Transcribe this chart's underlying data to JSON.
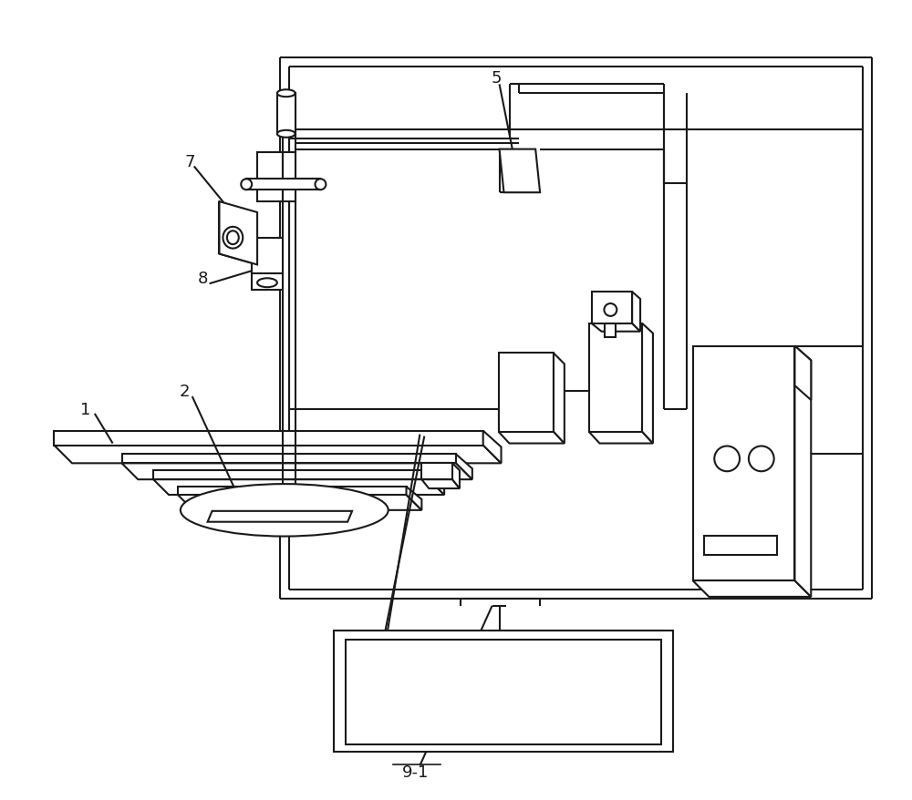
{
  "bg": "#ffffff",
  "lc": "#1a1a1a",
  "lw": 1.5,
  "lw2": 1.2,
  "fs": 13
}
